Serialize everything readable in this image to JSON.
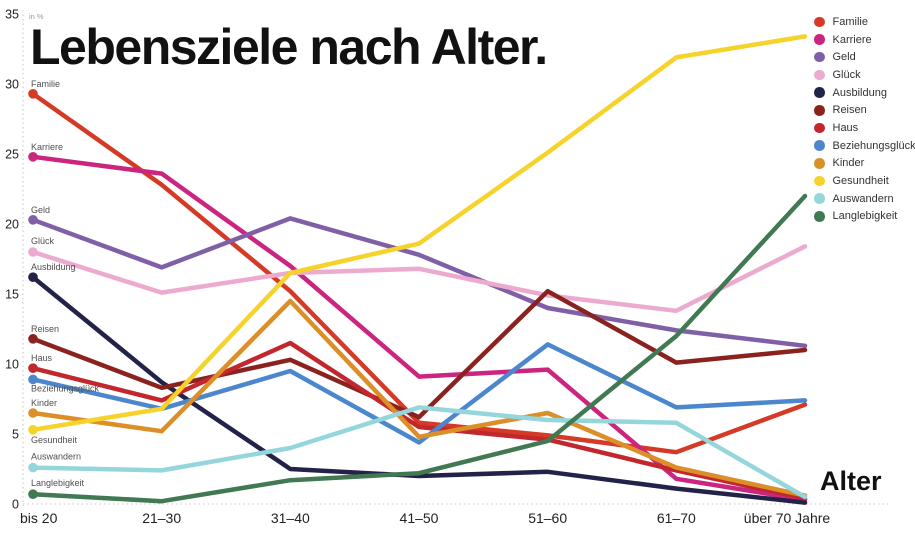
{
  "title": "Lebensziele nach Alter.",
  "x_axis_title": "Alter",
  "unit_label": "in %",
  "chart_data": {
    "type": "line",
    "title": "Lebensziele nach Alter.",
    "xlabel": "Alter",
    "ylabel": "in %",
    "ylim": [
      0,
      35
    ],
    "y_ticks": [
      0,
      5,
      10,
      15,
      20,
      25,
      30,
      35
    ],
    "grid": "dotted y-axis line and dotted zero baseline only",
    "legend_position": "top-right",
    "categories": [
      "bis 20",
      "21–30",
      "31–40",
      "41–50",
      "51–60",
      "61–70",
      "über 70 Jahre"
    ],
    "series": [
      {
        "name": "Familie",
        "color": "#d53a26",
        "label_dy": -7,
        "values": [
          29.3,
          22.8,
          15.2,
          5.8,
          4.9,
          3.7,
          7.1
        ]
      },
      {
        "name": "Karriere",
        "color": "#cb2580",
        "label_dy": -7,
        "values": [
          24.8,
          23.6,
          17.0,
          9.1,
          9.6,
          1.8,
          0.3
        ]
      },
      {
        "name": "Geld",
        "color": "#7f60a6",
        "label_dy": -7,
        "values": [
          20.3,
          16.9,
          20.4,
          17.8,
          14.0,
          12.4,
          11.3
        ]
      },
      {
        "name": "Glück",
        "color": "#edaacf",
        "label_dy": -8,
        "values": [
          18.0,
          15.1,
          16.5,
          16.8,
          14.9,
          13.8,
          18.4
        ]
      },
      {
        "name": "Ausbildung",
        "color": "#232349",
        "label_dy": -7,
        "values": [
          16.2,
          8.7,
          2.5,
          2.0,
          2.3,
          1.1,
          0.1
        ]
      },
      {
        "name": "Reisen",
        "color": "#8a231f",
        "label_dy": -7,
        "values": [
          11.8,
          8.3,
          10.3,
          6.2,
          15.2,
          10.1,
          11.0
        ]
      },
      {
        "name": "Haus",
        "color": "#c2272e",
        "label_dy": -7,
        "values": [
          9.7,
          7.4,
          11.5,
          5.5,
          4.6,
          2.4,
          0.4
        ]
      },
      {
        "name": "Beziehungsglück",
        "color": "#4c87cd",
        "label_dy": 12,
        "values": [
          8.9,
          6.8,
          9.5,
          4.4,
          11.4,
          6.9,
          7.4
        ]
      },
      {
        "name": "Kinder",
        "color": "#dc8e28",
        "label_dy": -7,
        "values": [
          6.5,
          5.2,
          14.5,
          4.8,
          6.5,
          2.6,
          0.6
        ]
      },
      {
        "name": "Gesundheit",
        "color": "#f6d32b",
        "label_dy": 13,
        "values": [
          5.3,
          6.8,
          16.5,
          18.6,
          25.1,
          31.9,
          33.4
        ]
      },
      {
        "name": "Auswandern",
        "color": "#94d6dc",
        "label_dy": -8,
        "values": [
          2.6,
          2.4,
          4.0,
          6.9,
          6.0,
          5.8,
          0.5
        ]
      },
      {
        "name": "Langlebigkeit",
        "color": "#417953",
        "label_dy": -8,
        "values": [
          0.7,
          0.2,
          1.7,
          2.2,
          4.5,
          12.0,
          22.0
        ]
      }
    ]
  }
}
